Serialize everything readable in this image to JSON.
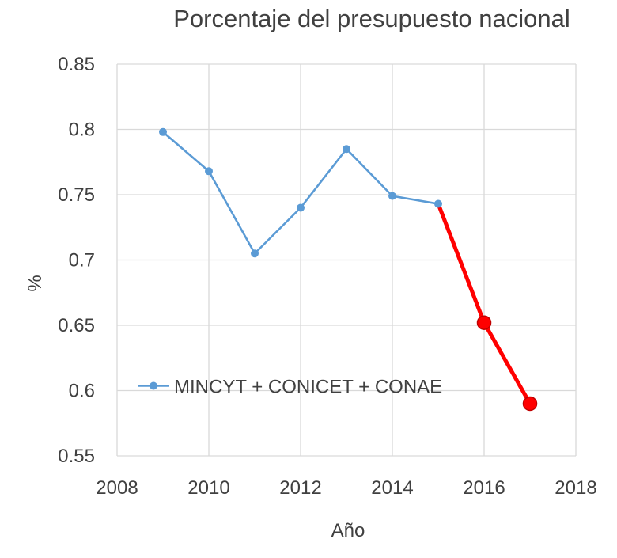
{
  "chart_data": {
    "type": "line",
    "title": "Porcentaje del presupuesto nacional",
    "xlabel": "Año",
    "ylabel": "%",
    "xlim": [
      2008,
      2018
    ],
    "ylim": [
      0.55,
      0.85
    ],
    "x_ticks": [
      2008,
      2010,
      2012,
      2014,
      2016,
      2018
    ],
    "y_ticks": [
      0.55,
      0.6,
      0.65,
      0.7,
      0.75,
      0.8,
      0.85
    ],
    "grid": true,
    "legend_position": "left, lower-middle, inside plot",
    "series": [
      {
        "name": "MINCYT + CONICET + CONAE",
        "color": "#5b9bd5",
        "x": [
          2009,
          2010,
          2011,
          2012,
          2013,
          2014,
          2015
        ],
        "y": [
          0.798,
          0.768,
          0.705,
          0.74,
          0.785,
          0.749,
          0.743
        ]
      },
      {
        "color": "#ff0000",
        "x": [
          2015,
          2016,
          2017
        ],
        "y": [
          0.743,
          0.652,
          0.59
        ],
        "marker_years": [
          2016,
          2017
        ]
      }
    ]
  }
}
